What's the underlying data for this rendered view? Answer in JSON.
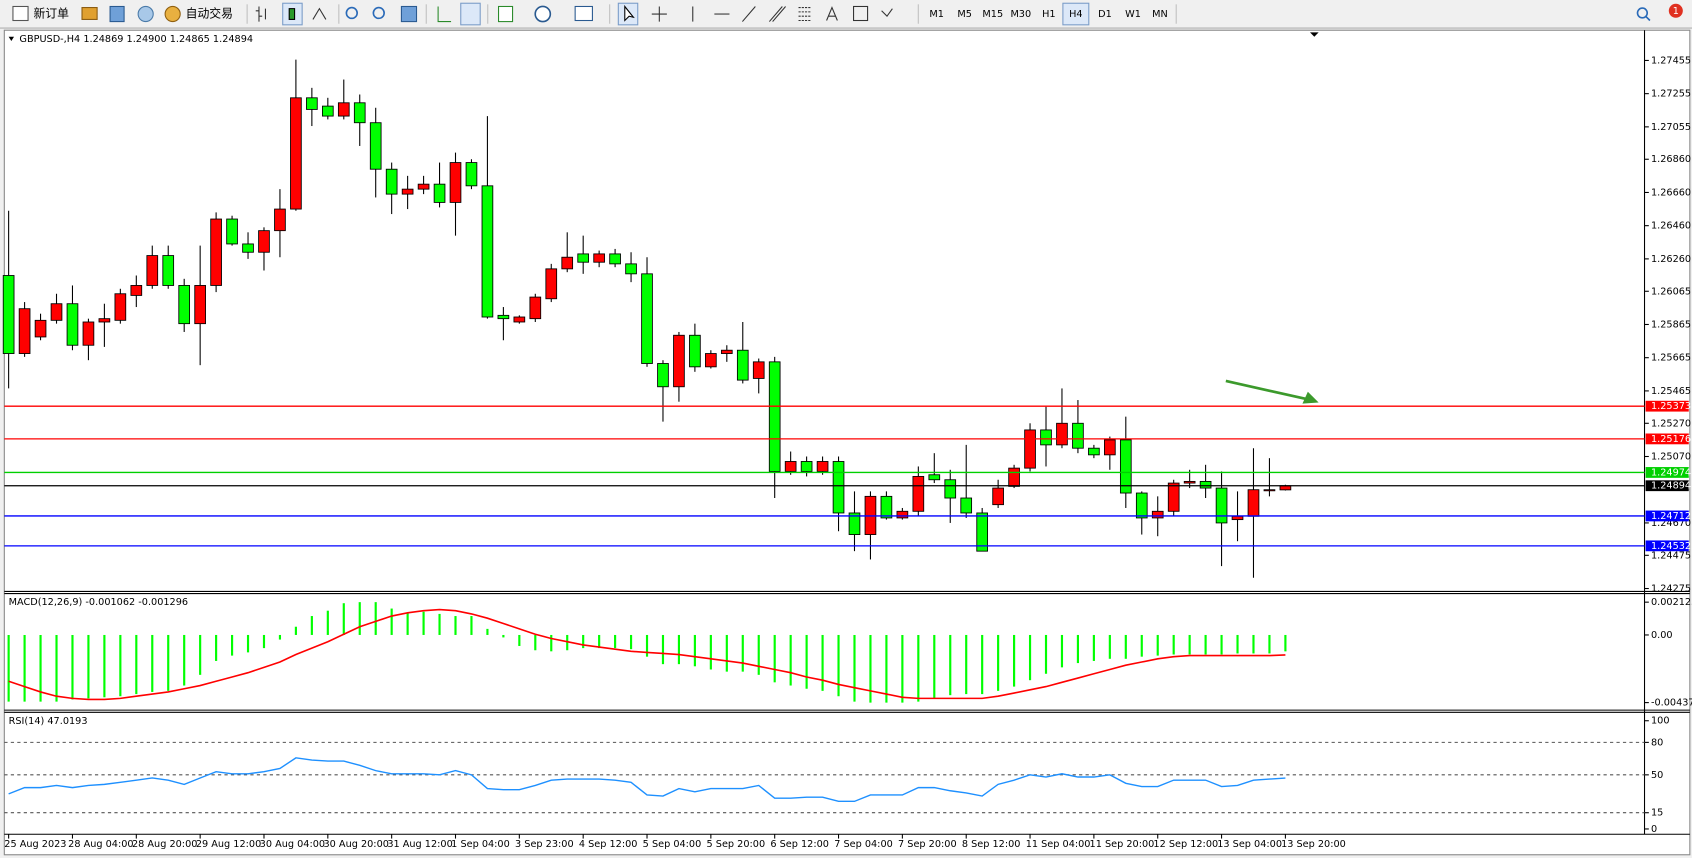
{
  "toolbar": {
    "buttons": [
      "新订单",
      "自动交易"
    ],
    "timeframes": [
      "M1",
      "M5",
      "M15",
      "M30",
      "H1",
      "H4",
      "D1",
      "W1",
      "MN"
    ],
    "active_timeframe": 5,
    "notifications": 1
  },
  "chart_data": [
    {
      "type": "candlestick",
      "title": "GBPUSD-,H4  1.24869 1.24900 1.24865 1.24894",
      "categories": [
        "25 Aug 2023",
        null,
        null,
        null,
        "28 Aug 04:00",
        null,
        null,
        null,
        "28 Aug 20:00",
        null,
        null,
        null,
        "29 Aug 12:00",
        null,
        null,
        null,
        "30 Aug 04:00",
        null,
        null,
        null,
        "30 Aug 20:00",
        null,
        null,
        null,
        "31 Aug 12:00",
        null,
        null,
        null,
        "1 Sep 04:00",
        null,
        null,
        null,
        "3 Sep 23:00",
        null,
        null,
        null,
        "4 Sep 12:00",
        null,
        null,
        null,
        "5 Sep 04:00",
        null,
        null,
        null,
        "5 Sep 20:00",
        null,
        null,
        null,
        "6 Sep 12:00",
        null,
        null,
        null,
        "7 Sep 04:00",
        null,
        null,
        null,
        "7 Sep 20:00",
        null,
        null,
        null,
        "8 Sep 12:00",
        null,
        null,
        null,
        "11 Sep 04:00",
        null,
        null,
        null,
        "11 Sep 20:00",
        null,
        null,
        null,
        "12 Sep 12:00",
        null,
        null,
        null,
        "13 Sep 04:00",
        null,
        null,
        null,
        "13 Sep 20:00"
      ],
      "open": [
        1.2616,
        1.2569,
        1.2579,
        1.2589,
        1.2599,
        1.2574,
        1.2588,
        1.2589,
        1.2604,
        1.261,
        1.2628,
        1.261,
        1.2587,
        1.261,
        1.265,
        1.2635,
        1.263,
        1.2643,
        1.2656,
        1.2723,
        1.2718,
        1.2712,
        1.272,
        1.2708,
        1.268,
        1.2665,
        1.2668,
        1.2671,
        1.266,
        1.2684,
        1.267,
        1.2592,
        1.2588,
        1.259,
        1.2602,
        1.262,
        1.2629,
        1.2624,
        1.2629,
        1.2623,
        1.2617,
        1.2563,
        1.2549,
        1.258,
        1.2561,
        1.2569,
        1.2571,
        1.2554,
        1.2564,
        1.2498,
        1.2504,
        1.2498,
        1.2504,
        1.2473,
        1.246,
        1.2483,
        1.247,
        1.2474,
        1.2496,
        1.2493,
        1.2482,
        1.2473,
        1.2478,
        1.2489,
        1.25,
        1.2523,
        1.2514,
        1.2527,
        1.2512,
        1.2508,
        1.2517,
        1.2485,
        1.247,
        1.2474,
        1.2491,
        1.2492,
        1.2488,
        1.2469,
        1.2471,
        1.2487,
        1.24869
      ],
      "high": [
        1.2655,
        1.26,
        1.2593,
        1.2605,
        1.261,
        1.259,
        1.2599,
        1.2608,
        1.2616,
        1.2634,
        1.2634,
        1.2614,
        1.2634,
        1.2654,
        1.2652,
        1.2642,
        1.2645,
        1.2668,
        1.2746,
        1.2729,
        1.2723,
        1.2734,
        1.2725,
        1.2717,
        1.2684,
        1.2676,
        1.2676,
        1.2684,
        1.269,
        1.2686,
        1.2712,
        1.2597,
        1.2592,
        1.2605,
        1.2623,
        1.2642,
        1.264,
        1.2631,
        1.2632,
        1.263,
        1.2627,
        1.2565,
        1.2582,
        1.2587,
        1.2571,
        1.2574,
        1.2588,
        1.2566,
        1.2567,
        1.251,
        1.2507,
        1.2507,
        1.2507,
        1.2486,
        1.2486,
        1.2486,
        1.2476,
        1.2501,
        1.2509,
        1.2499,
        1.2514,
        1.2476,
        1.2493,
        1.2502,
        1.2527,
        1.2537,
        1.2548,
        1.2541,
        1.2514,
        1.2519,
        1.2531,
        1.2486,
        1.2483,
        1.2493,
        1.2499,
        1.2502,
        1.2498,
        1.2486,
        1.2512,
        1.2506,
        1.249
      ],
      "low": [
        1.2548,
        1.2567,
        1.2577,
        1.2587,
        1.2571,
        1.2565,
        1.2573,
        1.2587,
        1.2597,
        1.2608,
        1.2608,
        1.2582,
        1.2562,
        1.2606,
        1.2634,
        1.2626,
        1.2619,
        1.2627,
        1.2655,
        1.2706,
        1.271,
        1.271,
        1.2694,
        1.2663,
        1.2653,
        1.2656,
        1.2665,
        1.2657,
        1.264,
        1.2668,
        1.259,
        1.2577,
        1.2587,
        1.2588,
        1.26,
        1.2618,
        1.2617,
        1.2621,
        1.2621,
        1.2612,
        1.2561,
        1.2528,
        1.254,
        1.2558,
        1.256,
        1.2564,
        1.2551,
        1.2545,
        1.2482,
        1.2496,
        1.2495,
        1.2496,
        1.2462,
        1.245,
        1.2445,
        1.2469,
        1.2469,
        1.2471,
        1.2491,
        1.2467,
        1.247,
        1.245,
        1.2476,
        1.2488,
        1.2498,
        1.2501,
        1.2512,
        1.2509,
        1.2506,
        1.2499,
        1.2476,
        1.246,
        1.2459,
        1.2471,
        1.2488,
        1.2482,
        1.2441,
        1.2456,
        1.2434,
        1.2483,
        1.24865
      ],
      "close": [
        1.2569,
        1.2596,
        1.2589,
        1.2599,
        1.2574,
        1.2588,
        1.259,
        1.2605,
        1.261,
        1.2628,
        1.261,
        1.2587,
        1.261,
        1.265,
        1.2635,
        1.263,
        1.2643,
        1.2656,
        1.2723,
        1.2716,
        1.2712,
        1.272,
        1.2708,
        1.268,
        1.2665,
        1.2668,
        1.2671,
        1.266,
        1.2684,
        1.267,
        1.2591,
        1.259,
        1.2591,
        1.2603,
        1.262,
        1.2627,
        1.2624,
        1.2629,
        1.2623,
        1.2617,
        1.2563,
        1.2549,
        1.258,
        1.2561,
        1.2569,
        1.2571,
        1.2553,
        1.2564,
        1.2498,
        1.2504,
        1.2498,
        1.2504,
        1.2473,
        1.246,
        1.2483,
        1.247,
        1.2474,
        1.2495,
        1.2493,
        1.2482,
        1.2473,
        1.245,
        1.2488,
        1.25,
        1.2523,
        1.2514,
        1.2527,
        1.2512,
        1.2508,
        1.2517,
        1.2485,
        1.247,
        1.2474,
        1.2491,
        1.2492,
        1.2488,
        1.2467,
        1.2471,
        1.2487,
        1.2487,
        1.24894
      ],
      "up_color": "#ff0000",
      "down_color": "#00ff00",
      "ylim": [
        1.24264,
        1.27624
      ],
      "yticks": [
        1.27455,
        1.27255,
        1.27055,
        {
          "value": 1.2686,
          "label": "1.26860"
        },
        {
          "value": 1.2666,
          "label": "1.26660"
        },
        {
          "value": 1.2646,
          "label": "1.26460"
        },
        {
          "value": 1.2626,
          "label": "1.26260"
        },
        1.26065,
        1.25865,
        1.25665,
        1.25465,
        {
          "value": 1.2527,
          "label": "1.25270"
        },
        {
          "value": 1.2507,
          "label": "1.25070"
        },
        {
          "value": 1.2467,
          "label": "1.24670"
        },
        1.24475,
        1.24275
      ],
      "levels": [
        {
          "value": 1.25373,
          "color": "#ff0000"
        },
        {
          "value": 1.25176,
          "color": "#ff0000"
        },
        {
          "value": 1.24974,
          "color": "#00d000"
        },
        {
          "value": 1.24894,
          "color": "#000000"
        },
        {
          "value": 1.24712,
          "color": "#0000ff"
        },
        {
          "value": 1.24532,
          "color": "#0000ff"
        }
      ]
    },
    {
      "type": "macd",
      "title": "MACD(12,26,9) -0.001062 -0.001296",
      "series": [
        {
          "kind": "histogram",
          "color": "#00ff00",
          "values": [
            -0.004311,
            -0.004311,
            -0.004311,
            -0.004311,
            -0.004173,
            -0.004104,
            -0.004034,
            -0.003965,
            -0.003827,
            -0.003688,
            -0.003619,
            -0.003273,
            -0.002581,
            -0.001682,
            -0.001336,
            -0.001128,
            -0.000851,
            -0.000298,
            0.000533,
            0.001225,
            0.001571,
            0.002055,
            0.002124,
            0.002124,
            0.001709,
            0.001432,
            0.001502,
            0.001363,
            0.001225,
            0.001225,
            0.000394,
            -0.000159,
            -0.000713,
            -0.00099,
            -0.001059,
            -0.00099,
            -0.000851,
            -0.000851,
            -0.000851,
            -0.00092,
            -0.001405,
            -0.001889,
            -0.001889,
            -0.002028,
            -0.002235,
            -0.002374,
            -0.002374,
            -0.002581,
            -0.003066,
            -0.003273,
            -0.003481,
            -0.003619,
            -0.003965,
            -0.004311,
            -0.00438,
            -0.00438,
            -0.00438,
            -0.004311,
            -0.004104,
            -0.003896,
            -0.003827,
            -0.003827,
            -0.003619,
            -0.003342,
            -0.002927,
            -0.002512,
            -0.002097,
            -0.00182,
            -0.001682,
            -0.001543,
            -0.001543,
            -0.001405,
            -0.001336,
            -0.001266,
            -0.001266,
            -0.001266,
            -0.001266,
            -0.001197,
            -0.001197,
            -0.001197,
            -0.001062
          ]
        },
        {
          "kind": "line",
          "color": "#ff0000",
          "values": [
            -0.002996,
            -0.003342,
            -0.003688,
            -0.003965,
            -0.004104,
            -0.004173,
            -0.004173,
            -0.004104,
            -0.003965,
            -0.003827,
            -0.003688,
            -0.003481,
            -0.003273,
            -0.002996,
            -0.00272,
            -0.002443,
            -0.002097,
            -0.001751,
            -0.001266,
            -0.000851,
            -0.000436,
            4.8e-05,
            0.000533,
            0.000879,
            0.001225,
            0.001432,
            0.001571,
            0.00164,
            0.001571,
            0.001363,
            0.001086,
            0.00074,
            0.000394,
            4.8e-05,
            -0.000228,
            -0.000436,
            -0.000644,
            -0.000782,
            -0.00092,
            -0.001059,
            -0.001128,
            -0.001197,
            -0.001266,
            -0.001405,
            -0.001543,
            -0.001682,
            -0.00182,
            -0.002028,
            -0.002235,
            -0.002443,
            -0.00272,
            -0.002927,
            -0.003204,
            -0.003412,
            -0.003619,
            -0.003827,
            -0.004034,
            -0.004104,
            -0.004104,
            -0.004104,
            -0.004104,
            -0.004104,
            -0.003965,
            -0.003758,
            -0.00355,
            -0.003342,
            -0.003066,
            -0.002789,
            -0.002512,
            -0.002235,
            -0.001958,
            -0.001751,
            -0.001543,
            -0.001405,
            -0.001336,
            -0.001336,
            -0.001336,
            -0.001336,
            -0.001336,
            -0.001336,
            -0.001296
          ]
        }
      ],
      "ylim": [
        -0.004796,
        0.002678
      ],
      "yticks": [
        0.002123,
        {
          "value": 0,
          "label": "0.00"
        },
        -0.004378
      ]
    },
    {
      "type": "rsi",
      "title": "RSI(14) 47.0193",
      "color": "#1e90ff",
      "values": [
        32.4,
        38.2,
        38.2,
        40.2,
        38.2,
        40.2,
        41.2,
        43.1,
        45.1,
        47.1,
        45.1,
        41.2,
        47.1,
        52.9,
        51,
        51,
        52.9,
        55.9,
        65.7,
        63.7,
        62.7,
        62.7,
        58.8,
        53.9,
        51,
        51,
        51,
        50,
        53.9,
        50,
        37.3,
        36.3,
        36.3,
        40.2,
        45.1,
        46.1,
        46.1,
        46.1,
        45.1,
        43.1,
        31.4,
        30.4,
        37.3,
        34.3,
        37.3,
        37.3,
        37.3,
        40.2,
        28.4,
        28.4,
        29.4,
        29.4,
        25.5,
        25.5,
        31.4,
        31.4,
        31.4,
        38.2,
        38.2,
        35.3,
        33.3,
        30.4,
        41.2,
        45.1,
        50,
        48,
        51,
        48,
        48,
        50,
        42.2,
        39.2,
        39.2,
        45.1,
        45.1,
        45.1,
        39.2,
        40.2,
        45.1,
        46.1,
        47.0193
      ],
      "ylim": [
        -4.9,
        107.8
      ],
      "yticks": [
        100,
        80,
        50,
        15,
        0
      ],
      "levels": [
        80,
        50,
        15
      ]
    }
  ]
}
